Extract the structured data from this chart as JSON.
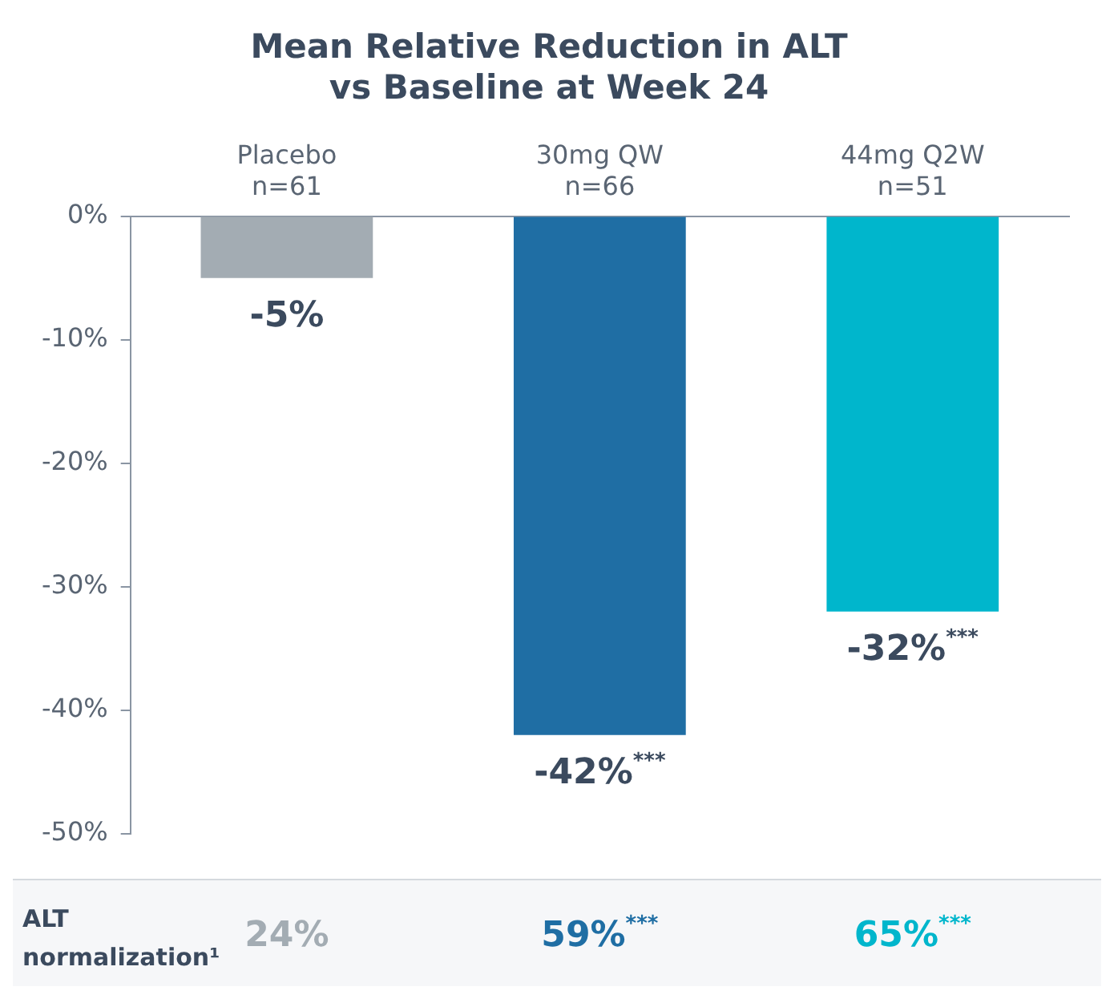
{
  "chart_data": {
    "type": "bar",
    "title": "Mean Relative Reduction in ALT vs Baseline at Week 24",
    "categories": [
      "Placebo\nn=61",
      "30mg QW\nn=66",
      "44mg Q2W\nn=51"
    ],
    "values": [
      -5,
      -42,
      -32
    ],
    "colors": [
      "#a3acb3",
      "#1f6ea4",
      "#00b6cc"
    ],
    "value_labels": [
      "-5%",
      "-42%$^{***}$",
      "-32%$^{***}$"
    ],
    "ylim": [
      -50,
      0
    ],
    "yticks": [
      {
        "value": 0,
        "label": "0%"
      },
      {
        "value": -10,
        "label": "-10%"
      },
      {
        "value": -20,
        "label": "-20%"
      },
      {
        "value": -30,
        "label": "-30%"
      },
      {
        "value": -40,
        "label": "-40%"
      },
      {
        "value": -50,
        "label": "-50%"
      }
    ],
    "grid": false,
    "legend": false,
    "annotations": [
      "ALT normalization¹",
      "24%",
      "59%$^{***}$",
      "65%$^{***}$"
    ]
  }
}
